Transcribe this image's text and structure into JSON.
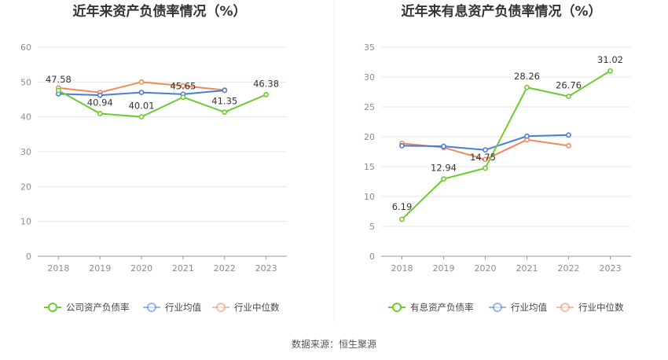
{
  "source_label": "数据来源：恒生聚源",
  "colors": {
    "series": [
      "#6acc2e",
      "#4a7ddb",
      "#f08a5d"
    ],
    "grid": "#e6e6e6",
    "axis": "#999999",
    "divider": "#eeeeee"
  },
  "chart_data": [
    {
      "type": "line",
      "title": "近年来资产负债率情况（%）",
      "categories": [
        "2018",
        "2019",
        "2020",
        "2021",
        "2022",
        "2023"
      ],
      "ylim": [
        0,
        60
      ],
      "yticks": [
        0,
        10,
        20,
        30,
        40,
        50,
        60
      ],
      "grid": true,
      "legend_position": "bottom",
      "series": [
        {
          "name": "公司资产负债率",
          "values": [
            47.58,
            40.94,
            40.01,
            45.65,
            41.35,
            46.38
          ],
          "labeled": true
        },
        {
          "name": "行业均值",
          "values": [
            46.6,
            46.2,
            47.0,
            46.5,
            47.6,
            null
          ],
          "labeled": false
        },
        {
          "name": "行业中位数",
          "values": [
            48.3,
            47.0,
            50.0,
            48.9,
            47.7,
            null
          ],
          "labeled": false
        }
      ],
      "data_labels": [
        "47.58",
        "40.94",
        "40.01",
        "45.65",
        "41.35",
        "46.38"
      ]
    },
    {
      "type": "line",
      "title": "近年来有息资产负债率情况（%）",
      "categories": [
        "2018",
        "2019",
        "2020",
        "2021",
        "2022",
        "2023"
      ],
      "ylim": [
        0,
        35
      ],
      "yticks": [
        0,
        5,
        10,
        15,
        20,
        25,
        30,
        35
      ],
      "grid": true,
      "legend_position": "bottom",
      "series": [
        {
          "name": "有息资产负债率",
          "values": [
            6.19,
            12.94,
            14.75,
            28.26,
            26.76,
            31.02
          ],
          "labeled": true
        },
        {
          "name": "行业均值",
          "values": [
            18.5,
            18.4,
            17.8,
            20.1,
            20.3,
            null
          ],
          "labeled": false
        },
        {
          "name": "行业中位数",
          "values": [
            18.9,
            18.2,
            16.2,
            19.5,
            18.5,
            null
          ],
          "labeled": false
        }
      ],
      "data_labels": [
        "6.19",
        "12.94",
        "14.75",
        "28.26",
        "26.76",
        "31.02"
      ]
    }
  ]
}
